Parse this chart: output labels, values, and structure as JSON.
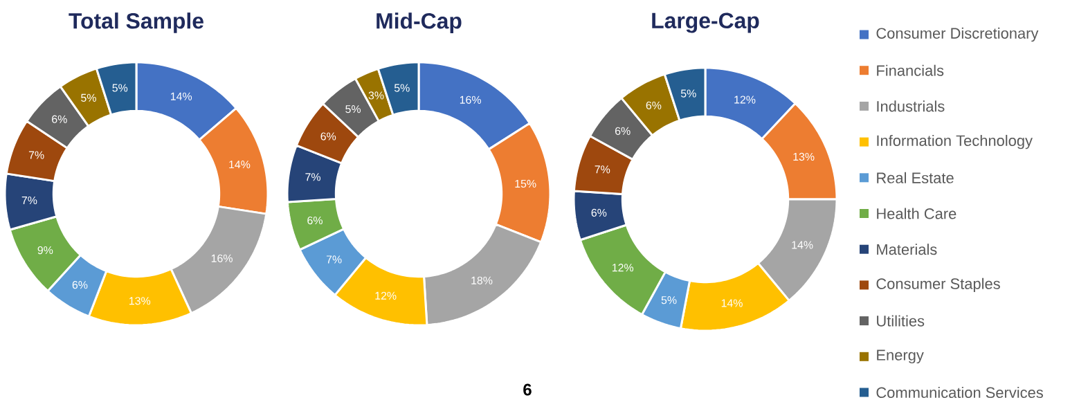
{
  "chart_data": [
    {
      "type": "donut",
      "title": "Total Sample",
      "categories": [
        null,
        null,
        null,
        null,
        null,
        null,
        null,
        null,
        null,
        null,
        null
      ],
      "values": [
        14,
        14,
        16,
        13,
        6,
        9,
        7,
        7,
        6,
        5,
        5
      ],
      "value_labels": [
        "14%",
        "14%",
        "16%",
        "13%",
        "6%",
        "9%",
        "7%",
        "7%",
        "6%",
        "5%",
        "5%"
      ],
      "colors": [
        "#4472c4",
        "#ed7d31",
        "#a5a5a5",
        "#ffc000",
        "#5b9bd5",
        "#70ad47",
        "#264478",
        "#9e480e",
        "#636363",
        "#997300",
        "#255e91"
      ]
    },
    {
      "type": "donut",
      "title": "Mid-Cap",
      "categories": [
        null,
        null,
        null,
        null,
        null,
        null,
        null,
        null,
        null,
        null,
        null
      ],
      "values": [
        16,
        15,
        18,
        12,
        7,
        6,
        7,
        6,
        5,
        3,
        5
      ],
      "value_labels": [
        "16%",
        "15%",
        "18%",
        "12%",
        "7%",
        "6%",
        "7%",
        "6%",
        "5%",
        "3%",
        "5%"
      ],
      "colors": [
        "#4472c4",
        "#ed7d31",
        "#a5a5a5",
        "#ffc000",
        "#5b9bd5",
        "#70ad47",
        "#264478",
        "#9e480e",
        "#636363",
        "#997300",
        "#255e91"
      ],
      "annotations": [
        "6"
      ]
    },
    {
      "type": "donut",
      "title": "Large-Cap",
      "categories": [
        "Consumer Discretionary",
        "Financials",
        "Industrials",
        "Information Technology",
        "Real Estate",
        "Health Care",
        "Materials",
        "Consumer Staples",
        "Utilities",
        "Energy",
        "Communication Services"
      ],
      "values": [
        12,
        13,
        14,
        14,
        5,
        12,
        6,
        7,
        6,
        6,
        5
      ],
      "value_labels": [
        "12%",
        "13%",
        "14%",
        "14%",
        "5%",
        "12%",
        "6%",
        "7%",
        "6%",
        "6%",
        "5%"
      ],
      "colors": [
        "#4472c4",
        "#ed7d31",
        "#a5a5a5",
        "#ffc000",
        "#5b9bd5",
        "#70ad47",
        "#264478",
        "#9e480e",
        "#636363",
        "#997300",
        "#255e91"
      ],
      "legend": "right"
    }
  ]
}
